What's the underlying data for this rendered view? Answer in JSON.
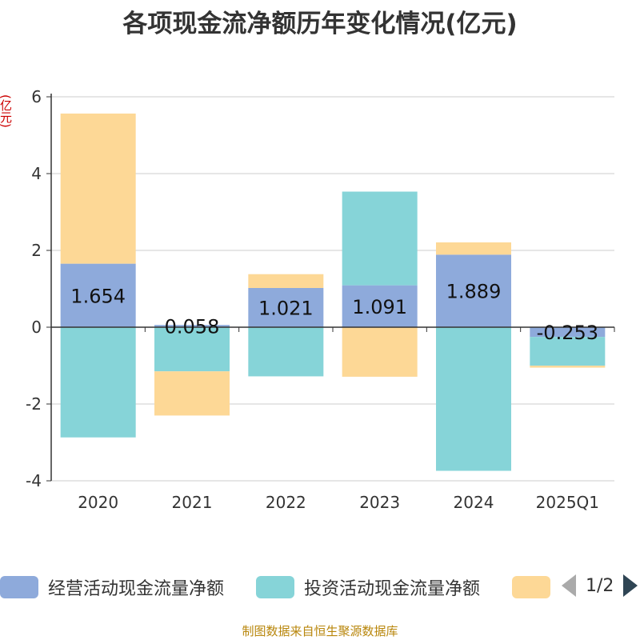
{
  "title": "各项现金流净额历年变化情况(亿元)",
  "unit_label": "(亿元)",
  "source": "制图数据来自恒生聚源数据库",
  "legend": {
    "items": [
      {
        "label": "经营活动现金流量净额",
        "color": "#8eaadb"
      },
      {
        "label": "投资活动现金流量净额",
        "color": "#86d4d8"
      },
      {
        "label": "",
        "color": "#fdd896"
      }
    ],
    "page": "1/2"
  },
  "chart_data": {
    "type": "bar",
    "stacked": true,
    "categories": [
      "2020",
      "2021",
      "2022",
      "2023",
      "2024",
      "2025Q1"
    ],
    "ylim": [
      -4,
      6
    ],
    "yticks": [
      -4,
      -2,
      0,
      2,
      4,
      6
    ],
    "grid": true,
    "legend_position": "bottom",
    "series": [
      {
        "name": "经营活动现金流量净额",
        "color": "#8eaadb",
        "values": [
          1.654,
          0.058,
          1.021,
          1.091,
          1.889,
          -0.253
        ],
        "labels": [
          "1.654",
          "0.058",
          "1.021",
          "1.091",
          "1.889",
          "-0.253"
        ]
      },
      {
        "name": "投资活动现金流量净额",
        "color": "#86d4d8",
        "values": [
          -2.87,
          -1.15,
          -1.28,
          2.44,
          -3.74,
          -0.75
        ]
      },
      {
        "color": "#fdd896",
        "values": [
          3.91,
          -1.15,
          0.36,
          -1.29,
          0.32,
          -0.05
        ]
      }
    ]
  }
}
